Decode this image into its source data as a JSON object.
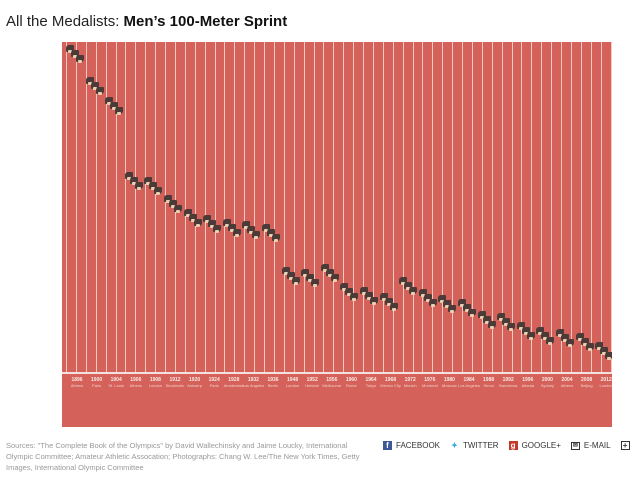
{
  "title": {
    "prefix": "All the Medalists: ",
    "main": "Men’s 100-Meter Sprint"
  },
  "games": [
    {
      "year": "1896",
      "city": "Athens"
    },
    {
      "year": "1900",
      "city": "Paris"
    },
    {
      "year": "1904",
      "city": "St. Louis"
    },
    {
      "year": "1906",
      "city": "Athens"
    },
    {
      "year": "1908",
      "city": "London"
    },
    {
      "year": "1912",
      "city": "Stockholm"
    },
    {
      "year": "1920",
      "city": "Antwerp"
    },
    {
      "year": "1924",
      "city": "Paris"
    },
    {
      "year": "1928",
      "city": "Amsterdam"
    },
    {
      "year": "1932",
      "city": "Los Angeles"
    },
    {
      "year": "1936",
      "city": "Berlin"
    },
    {
      "year": "1948",
      "city": "London"
    },
    {
      "year": "1952",
      "city": "Helsinki"
    },
    {
      "year": "1956",
      "city": "Melbourne"
    },
    {
      "year": "1960",
      "city": "Rome"
    },
    {
      "year": "1964",
      "city": "Tokyo"
    },
    {
      "year": "1968",
      "city": "Mexico City"
    },
    {
      "year": "1972",
      "city": "Munich"
    },
    {
      "year": "1976",
      "city": "Montreal"
    },
    {
      "year": "1980",
      "city": "Moscow"
    },
    {
      "year": "1984",
      "city": "Los Angeles"
    },
    {
      "year": "1988",
      "city": "Seoul"
    },
    {
      "year": "1992",
      "city": "Barcelona"
    },
    {
      "year": "1996",
      "city": "Atlanta"
    },
    {
      "year": "2000",
      "city": "Sydney"
    },
    {
      "year": "2004",
      "city": "Athens"
    },
    {
      "year": "2008",
      "city": "Beijing"
    },
    {
      "year": "2012",
      "city": "London"
    }
  ],
  "sources": "Sources: \"The Complete Book of the Olympics\" by David Wallechinsky and Jaime Loucky, International Olympic Committee; Amateur Athletic Assocation; Photographs: Chang W. Lee/The New York Times, Getty Images, International Olympic Committee",
  "share": {
    "facebook": "FACEBOOK",
    "twitter": "TWITTER",
    "google": "GOOGLE+",
    "email": "E-MAIL"
  },
  "colors": {
    "track": "#d5625a",
    "facebook": "#3b5998",
    "twitter": "#2fa9e0",
    "google": "#c5382a"
  }
}
